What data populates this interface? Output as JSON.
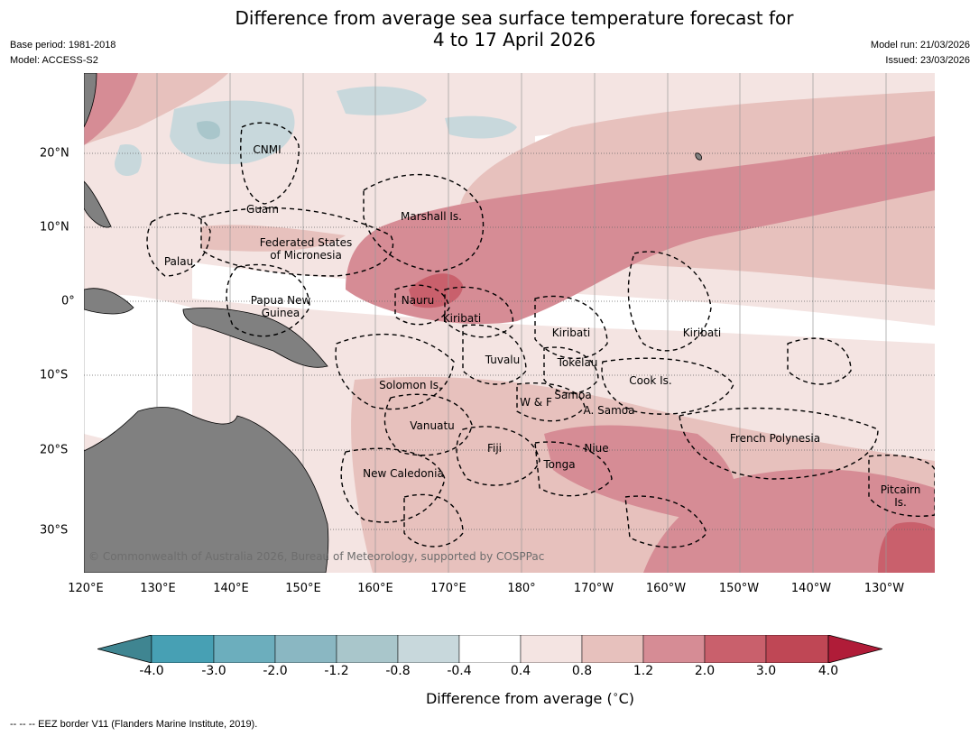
{
  "title": {
    "line1": "Difference from average sea surface temperature forecast for",
    "line2": "4 to 17 April 2026"
  },
  "meta_left": {
    "base_period": "Base period: 1981-2018",
    "model": "Model: ACCESS-S2"
  },
  "meta_right": {
    "model_run": "Model run: 21/03/2026",
    "issued": "Issued: 23/03/2026"
  },
  "axes": {
    "lon_labels": [
      "120°E",
      "130°E",
      "140°E",
      "150°E",
      "160°E",
      "170°E",
      "180°",
      "170°W",
      "160°W",
      "150°W",
      "140°W",
      "130°W"
    ],
    "lat_labels": [
      "20°N",
      "10°N",
      "0°",
      "10°S",
      "20°S",
      "30°S"
    ]
  },
  "regions": {
    "cnmi": "CNMI",
    "guam": "Guam",
    "marshall": "Marshall Is.",
    "fsm_1": "Federated States",
    "fsm_2": "of Micronesia",
    "palau": "Palau",
    "png_1": "Papua New",
    "png_2": "Guinea",
    "nauru": "Nauru",
    "kiribati_w": "Kiribati",
    "kiribati_c": "Kiribati",
    "kiribati_e": "Kiribati",
    "tuvalu": "Tuvalu",
    "tokelau": "Tokelau",
    "cook": "Cook Is.",
    "solomon": "Solomon Is.",
    "samoa": "Samoa",
    "wf": "W & F",
    "asamoa": "A. Samoa",
    "vanuatu": "Vanuatu",
    "fiji": "Fiji",
    "niue": "Niue",
    "tonga": "Tonga",
    "fp": "French Polynesia",
    "newcal": "New Caledonia",
    "pitcairn_1": "Pitcairn",
    "pitcairn_2": "Is."
  },
  "copyright": "© Commonwealth of Australia 2026, Bureau of Meteorology, supported by COSPPac",
  "colorbar": {
    "ticks": [
      "-4.0",
      "-3.0",
      "-2.0",
      "-1.2",
      "-0.8",
      "-0.4",
      "0.4",
      "0.8",
      "1.2",
      "2.0",
      "3.0",
      "4.0"
    ],
    "colors": [
      "#3f8591",
      "#47a0b4",
      "#6caebd",
      "#8ab7c2",
      "#a9c6cb",
      "#c8d8dc",
      "#ffffff",
      "#f4e4e2",
      "#e7c1bd",
      "#d68c95",
      "#c9606c",
      "#bf4755",
      "#b01c38"
    ],
    "label": "Difference from average (",
    "unit_sym": "∘",
    "unit": "C)"
  },
  "footnote": "--  --  -- EEZ border V11 (Flanders Marine Institute, 2019)."
}
